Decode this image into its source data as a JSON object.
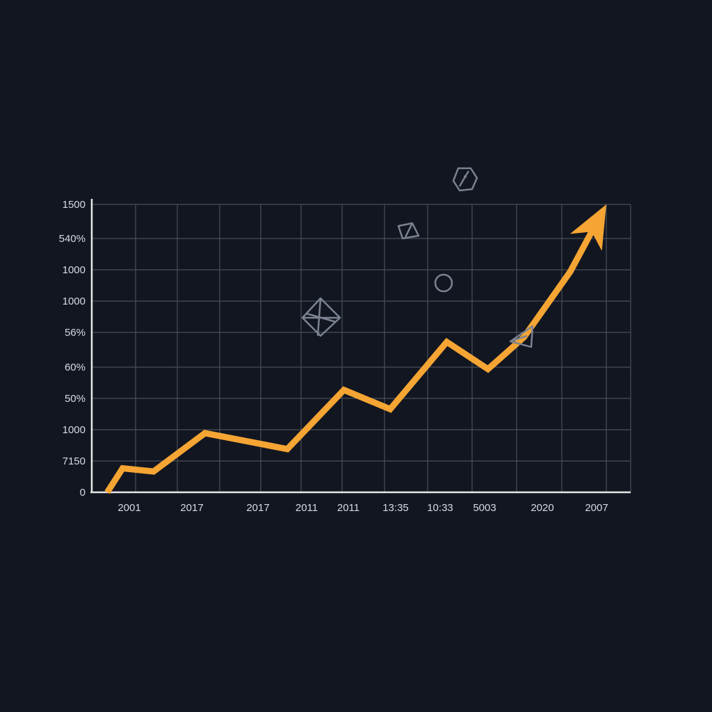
{
  "chart_data": {
    "type": "line",
    "title": "",
    "xlabel": "",
    "ylabel": "",
    "x_tick_labels": [
      "2001",
      "2017",
      "2017",
      "2011",
      "2011",
      "13:35",
      "10:33",
      "5003",
      "2020",
      "2007"
    ],
    "y_tick_labels": [
      "0",
      "7150",
      "1000",
      "50%",
      "60%",
      "56%",
      "1000",
      "1000",
      "540%",
      "1500"
    ],
    "grid": true,
    "legend": "none",
    "series": [
      {
        "color": "#f5a533",
        "end_marker": "arrow",
        "points": [
          {
            "x": 0.3,
            "y": 0.0
          },
          {
            "x": 0.6,
            "y": 0.75
          },
          {
            "x": 1.2,
            "y": 0.65
          },
          {
            "x": 2.2,
            "y": 1.85
          },
          {
            "x": 3.8,
            "y": 1.35
          },
          {
            "x": 4.9,
            "y": 3.2
          },
          {
            "x": 5.8,
            "y": 2.6
          },
          {
            "x": 6.9,
            "y": 4.7
          },
          {
            "x": 7.7,
            "y": 3.85
          },
          {
            "x": 8.4,
            "y": 4.85
          },
          {
            "x": 9.3,
            "y": 6.9
          },
          {
            "x": 10.0,
            "y": 9.0
          }
        ]
      }
    ],
    "decorations": [
      "polyhedron-icon",
      "polyhedron-icon",
      "circle-icon",
      "polyhedron-icon",
      "polyhedron-icon"
    ]
  }
}
